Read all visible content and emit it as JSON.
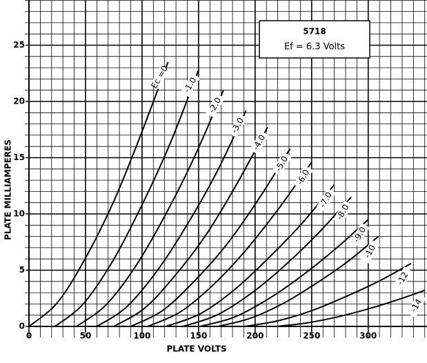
{
  "chart_data": {
    "type": "line",
    "annotation": {
      "tube": "5718",
      "heater": "Ef = 6.3 Volts"
    },
    "xlabel": "PLATE VOLTS",
    "ylabel": "PLATE MILLIAMPERES",
    "xlim": [
      0,
      352
    ],
    "ylim": [
      0,
      29
    ],
    "xticks": [
      0,
      50,
      100,
      150,
      200,
      250,
      300
    ],
    "yticks": [
      0,
      5,
      10,
      15,
      20,
      25
    ],
    "grid": true,
    "minor_grid_step": [
      10,
      1
    ],
    "series": [
      {
        "name": "Ec =0",
        "color": "#000000",
        "x": [
          0,
          25,
          49,
          74,
          98,
          123
        ],
        "values": [
          0,
          2.1,
          5.9,
          10.9,
          16.8,
          23.5
        ]
      },
      {
        "name": "-1.0",
        "color": "#000000",
        "x": [
          23,
          48,
          74,
          99,
          125,
          150
        ],
        "values": [
          0,
          2.0,
          5.8,
          10.6,
          16.3,
          22.8
        ]
      },
      {
        "name": "-2.0",
        "color": "#000000",
        "x": [
          42,
          68,
          94,
          120,
          146,
          172
        ],
        "values": [
          0,
          1.9,
          5.3,
          9.8,
          15.0,
          21
        ]
      },
      {
        "name": "-3.0",
        "color": "#000000",
        "x": [
          60,
          86,
          113,
          139,
          166,
          192
        ],
        "values": [
          0,
          1.7,
          4.9,
          8.9,
          13.7,
          19.2
        ]
      },
      {
        "name": "-4.0",
        "color": "#000000",
        "x": [
          75,
          102,
          129,
          157,
          184,
          211
        ],
        "values": [
          0,
          1.6,
          4.5,
          8.2,
          12.7,
          17.7
        ]
      },
      {
        "name": "-5.0",
        "color": "#000000",
        "x": [
          90,
          118,
          146,
          175,
          203,
          231
        ],
        "values": [
          0,
          1.4,
          4.0,
          7.3,
          11.3,
          15.8
        ]
      },
      {
        "name": "-6.0",
        "color": "#000000",
        "x": [
          105,
          134,
          163,
          192,
          221,
          250
        ],
        "values": [
          0,
          1.3,
          3.7,
          6.8,
          10.5,
          14.6
        ]
      },
      {
        "name": "-7.0",
        "color": "#000000",
        "x": [
          121,
          151,
          181,
          210,
          240,
          270
        ],
        "values": [
          0,
          1.1,
          3.2,
          5.9,
          9.0,
          12.6
        ]
      },
      {
        "name": "-8.0",
        "color": "#000000",
        "x": [
          136,
          166,
          196,
          225,
          255,
          285
        ],
        "values": [
          0,
          1.0,
          2.9,
          5.3,
          8.2,
          11.5
        ]
      },
      {
        "name": "-9.0",
        "color": "#000000",
        "x": [
          151,
          181,
          211,
          240,
          270,
          300
        ],
        "values": [
          0,
          0.8,
          2.4,
          4.4,
          6.8,
          9.5
        ]
      },
      {
        "name": "-10",
        "color": "#000000",
        "x": [
          167,
          195,
          224,
          252,
          281,
          309
        ],
        "values": [
          0,
          0.7,
          2.0,
          3.7,
          5.7,
          8
        ]
      },
      {
        "name": "-12",
        "color": "#000000",
        "x": [
          191,
          220,
          250,
          279,
          309,
          338
        ],
        "values": [
          0,
          0.5,
          1.4,
          2.6,
          4.0,
          5.6
        ]
      },
      {
        "name": "-14",
        "color": "#000000",
        "x": [
          219,
          245,
          271,
          298,
          324,
          350
        ],
        "values": [
          0,
          0.3,
          0.8,
          1.5,
          2.3,
          3.2
        ]
      }
    ]
  }
}
